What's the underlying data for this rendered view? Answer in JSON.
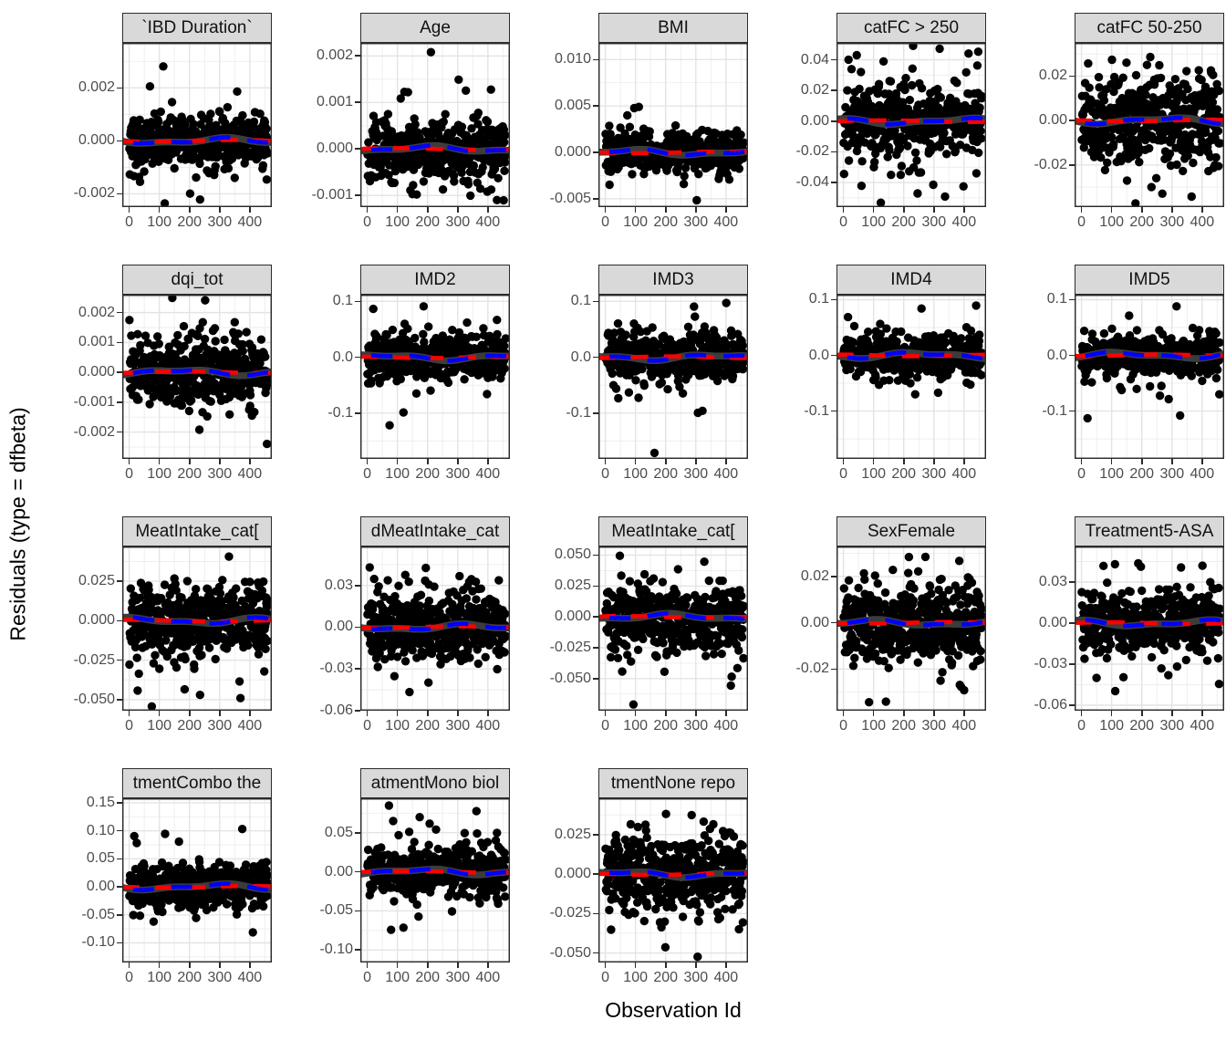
{
  "axes": {
    "x_label": "Observation Id",
    "y_label": "Residuals (type = dfbeta)"
  },
  "style": {
    "background": "#FFFFFF",
    "panel_background": "#FFFFFF",
    "panel_border": "#2B2B2B",
    "grid_major": "#E4E4E4",
    "grid_minor": "#EDEDED",
    "strip_fill": "#D9D9D9",
    "strip_text": "#111111",
    "tick_label_color": "#4D4D4D",
    "point_color": "#000000",
    "smoother_band_color": "#3C3C3C",
    "reference_line_color": "#FF0000",
    "smoother_line_color": "#0000FF"
  },
  "chart_data": {
    "type": "scatter",
    "title": "",
    "xlabel": "Observation Id",
    "ylabel": "Residuals (type = dfbeta)",
    "layout_hint": "facet_wrap, 5 columns x 4 rows (18 facets), free y scales, grid on, no legend",
    "x": {
      "tick_values": [
        0,
        100,
        200,
        300,
        400
      ],
      "tick_labels": [
        "0",
        "100",
        "200",
        "300",
        "400"
      ],
      "minor_ticks": [
        50,
        150,
        250,
        350,
        450
      ],
      "range": [
        -23,
        473
      ],
      "n_observations": 459
    },
    "smoother": {
      "description": "near-zero fitted line per facet: thick dark band with red dashed reference line at y=0 and blue dashed smoother",
      "y_center": 0
    },
    "facets": [
      {
        "label": "`IBD Duration`",
        "ylim": [
          -0.0025,
          0.0037
        ],
        "y_ticks": [
          {
            "v": 0.002,
            "t": "0.002"
          },
          {
            "v": 0.0,
            "t": "0.000"
          },
          {
            "v": -0.002,
            "t": "-0.002"
          }
        ],
        "seed": 11,
        "sd": 0.00045,
        "outlier_sd": 0.0014,
        "outlier_rate": 0.09
      },
      {
        "label": "Age",
        "ylim": [
          -0.00125,
          0.00228
        ],
        "y_ticks": [
          {
            "v": 0.002,
            "t": "0.002"
          },
          {
            "v": 0.001,
            "t": "0.001"
          },
          {
            "v": 0.0,
            "t": "0.000"
          },
          {
            "v": -0.001,
            "t": "-0.001"
          }
        ],
        "seed": 12,
        "sd": 0.00032,
        "outlier_sd": 0.00085,
        "outlier_rate": 0.1
      },
      {
        "label": "BMI",
        "ylim": [
          -0.0059,
          0.0118
        ],
        "y_ticks": [
          {
            "v": 0.01,
            "t": "0.010"
          },
          {
            "v": 0.005,
            "t": "0.005"
          },
          {
            "v": 0.0,
            "t": "0.000"
          },
          {
            "v": -0.005,
            "t": "-0.005"
          }
        ],
        "seed": 13,
        "sd": 0.0011,
        "outlier_sd": 0.0033,
        "outlier_rate": 0.06
      },
      {
        "label": "catFC > 250",
        "ylim": [
          -0.056,
          0.051
        ],
        "y_ticks": [
          {
            "v": 0.04,
            "t": "0.04"
          },
          {
            "v": 0.02,
            "t": "0.02"
          },
          {
            "v": 0.0,
            "t": "0.00"
          },
          {
            "v": -0.02,
            "t": "-0.02"
          },
          {
            "v": -0.04,
            "t": "-0.04"
          }
        ],
        "seed": 14,
        "sd": 0.011,
        "outlier_sd": 0.026,
        "outlier_rate": 0.12
      },
      {
        "label": "catFC 50-250",
        "ylim": [
          -0.039,
          0.035
        ],
        "y_ticks": [
          {
            "v": 0.02,
            "t": "0.02"
          },
          {
            "v": 0.0,
            "t": "0.00"
          },
          {
            "v": -0.02,
            "t": "-0.02"
          }
        ],
        "seed": 15,
        "sd": 0.009,
        "outlier_sd": 0.02,
        "outlier_rate": 0.12
      },
      {
        "label": "dqi_tot",
        "ylim": [
          -0.0029,
          0.0026
        ],
        "y_ticks": [
          {
            "v": 0.002,
            "t": "0.002"
          },
          {
            "v": 0.001,
            "t": "0.001"
          },
          {
            "v": 0.0,
            "t": "0.000"
          },
          {
            "v": -0.001,
            "t": "-0.001"
          },
          {
            "v": -0.002,
            "t": "-0.002"
          }
        ],
        "seed": 16,
        "sd": 0.0005,
        "outlier_sd": 0.0013,
        "outlier_rate": 0.09
      },
      {
        "label": "IMD2",
        "ylim": [
          -0.182,
          0.112
        ],
        "y_ticks": [
          {
            "v": 0.1,
            "t": "0.1"
          },
          {
            "v": 0.0,
            "t": "0.0"
          },
          {
            "v": -0.1,
            "t": "-0.1"
          }
        ],
        "seed": 17,
        "sd": 0.02,
        "outlier_sd": 0.068,
        "outlier_rate": 0.07
      },
      {
        "label": "IMD3",
        "ylim": [
          -0.182,
          0.112
        ],
        "y_ticks": [
          {
            "v": 0.1,
            "t": "0.1"
          },
          {
            "v": 0.0,
            "t": "0.0"
          },
          {
            "v": -0.1,
            "t": "-0.1"
          }
        ],
        "seed": 18,
        "sd": 0.02,
        "outlier_sd": 0.068,
        "outlier_rate": 0.07
      },
      {
        "label": "IMD4",
        "ylim": [
          -0.186,
          0.109
        ],
        "y_ticks": [
          {
            "v": 0.1,
            "t": "0.1"
          },
          {
            "v": 0.0,
            "t": "0.0"
          },
          {
            "v": -0.1,
            "t": "-0.1"
          }
        ],
        "seed": 19,
        "sd": 0.018,
        "outlier_sd": 0.062,
        "outlier_rate": 0.06
      },
      {
        "label": "IMD5",
        "ylim": [
          -0.186,
          0.109
        ],
        "y_ticks": [
          {
            "v": 0.1,
            "t": "0.1"
          },
          {
            "v": 0.0,
            "t": "0.0"
          },
          {
            "v": -0.1,
            "t": "-0.1"
          }
        ],
        "seed": 20,
        "sd": 0.018,
        "outlier_sd": 0.062,
        "outlier_rate": 0.06
      },
      {
        "label": "MeatIntake_cat[",
        "ylim": [
          -0.057,
          0.047
        ],
        "y_ticks": [
          {
            "v": 0.025,
            "t": "0.025"
          },
          {
            "v": 0.0,
            "t": "0.000"
          },
          {
            "v": -0.025,
            "t": "-0.025"
          },
          {
            "v": -0.05,
            "t": "-0.050"
          }
        ],
        "seed": 21,
        "sd": 0.011,
        "outlier_sd": 0.027,
        "outlier_rate": 0.12
      },
      {
        "label": "dMeatIntake_cat",
        "ylim": [
          -0.06,
          0.058
        ],
        "y_ticks": [
          {
            "v": 0.03,
            "t": "0.03"
          },
          {
            "v": 0.0,
            "t": "0.00"
          },
          {
            "v": -0.03,
            "t": "-0.03"
          },
          {
            "v": -0.06,
            "t": "-0.06"
          }
        ],
        "seed": 22,
        "sd": 0.012,
        "outlier_sd": 0.028,
        "outlier_rate": 0.11
      },
      {
        "label": "MeatIntake_cat[",
        "ylim": [
          -0.076,
          0.057
        ],
        "y_ticks": [
          {
            "v": 0.05,
            "t": "0.050"
          },
          {
            "v": 0.025,
            "t": "0.025"
          },
          {
            "v": 0.0,
            "t": "0.000"
          },
          {
            "v": -0.025,
            "t": "-0.025"
          },
          {
            "v": -0.05,
            "t": "-0.050"
          }
        ],
        "seed": 23,
        "sd": 0.013,
        "outlier_sd": 0.031,
        "outlier_rate": 0.12
      },
      {
        "label": "SexFemale",
        "ylim": [
          -0.038,
          0.033
        ],
        "y_ticks": [
          {
            "v": 0.02,
            "t": "0.02"
          },
          {
            "v": 0.0,
            "t": "0.00"
          },
          {
            "v": -0.02,
            "t": "-0.02"
          }
        ],
        "seed": 24,
        "sd": 0.0085,
        "outlier_sd": 0.019,
        "outlier_rate": 0.12
      },
      {
        "label": "Treatment5-ASA",
        "ylim": [
          -0.064,
          0.056
        ],
        "y_ticks": [
          {
            "v": 0.03,
            "t": "0.03"
          },
          {
            "v": 0.0,
            "t": "0.00"
          },
          {
            "v": -0.03,
            "t": "-0.03"
          },
          {
            "v": -0.06,
            "t": "-0.06"
          }
        ],
        "seed": 25,
        "sd": 0.011,
        "outlier_sd": 0.028,
        "outlier_rate": 0.1
      },
      {
        "label": "tmentCombo the",
        "ylim": [
          -0.135,
          0.158
        ],
        "y_ticks": [
          {
            "v": 0.15,
            "t": "0.15"
          },
          {
            "v": 0.1,
            "t": "0.10"
          },
          {
            "v": 0.05,
            "t": "0.05"
          },
          {
            "v": 0.0,
            "t": "0.00"
          },
          {
            "v": -0.05,
            "t": "-0.05"
          },
          {
            "v": -0.1,
            "t": "-0.10"
          }
        ],
        "seed": 26,
        "sd": 0.018,
        "outlier_sd": 0.056,
        "outlier_rate": 0.08
      },
      {
        "label": "atmentMono biol",
        "ylim": [
          -0.116,
          0.094
        ],
        "y_ticks": [
          {
            "v": 0.05,
            "t": "0.05"
          },
          {
            "v": 0.0,
            "t": "0.00"
          },
          {
            "v": -0.05,
            "t": "-0.05"
          },
          {
            "v": -0.1,
            "t": "-0.10"
          }
        ],
        "seed": 27,
        "sd": 0.016,
        "outlier_sd": 0.04,
        "outlier_rate": 0.1
      },
      {
        "label": "tmentNone repo",
        "ylim": [
          -0.056,
          0.048
        ],
        "y_ticks": [
          {
            "v": 0.025,
            "t": "0.025"
          },
          {
            "v": 0.0,
            "t": "0.000"
          },
          {
            "v": -0.025,
            "t": "-0.025"
          },
          {
            "v": -0.05,
            "t": "-0.050"
          }
        ],
        "seed": 28,
        "sd": 0.012,
        "outlier_sd": 0.027,
        "outlier_rate": 0.12
      }
    ]
  }
}
